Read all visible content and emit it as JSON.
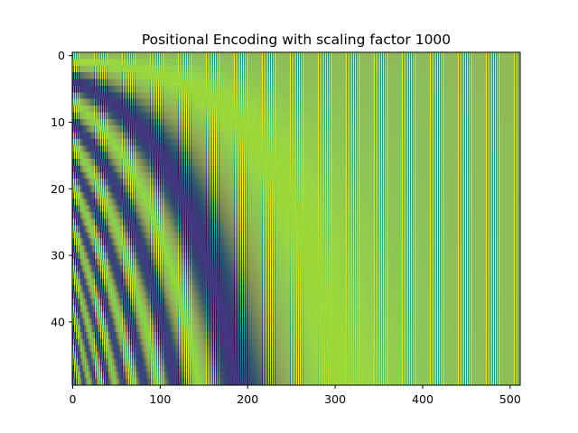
{
  "chart_data": {
    "type": "heatmap",
    "title": "Positional Encoding with scaling factor 1000",
    "xlabel": "",
    "ylabel": "",
    "rows": 50,
    "cols": 512,
    "scaling_factor": 1000,
    "xlim": [
      -0.5,
      511.5
    ],
    "ylim": [
      49.5,
      -0.5
    ],
    "x_ticks": [
      0,
      100,
      200,
      300,
      400,
      500
    ],
    "x_tick_labels": [
      "0",
      "100",
      "200",
      "300",
      "400",
      "500"
    ],
    "y_ticks": [
      0,
      10,
      20,
      30,
      40
    ],
    "y_tick_labels": [
      "0",
      "10",
      "20",
      "30",
      "40"
    ],
    "colormap": "viridis",
    "value_range": [
      -1,
      1
    ],
    "colorbar": false,
    "grid": false,
    "colors": {
      "viridis_low": "#440154",
      "viridis_mid": "#21918c",
      "viridis_high": "#fde725"
    }
  }
}
